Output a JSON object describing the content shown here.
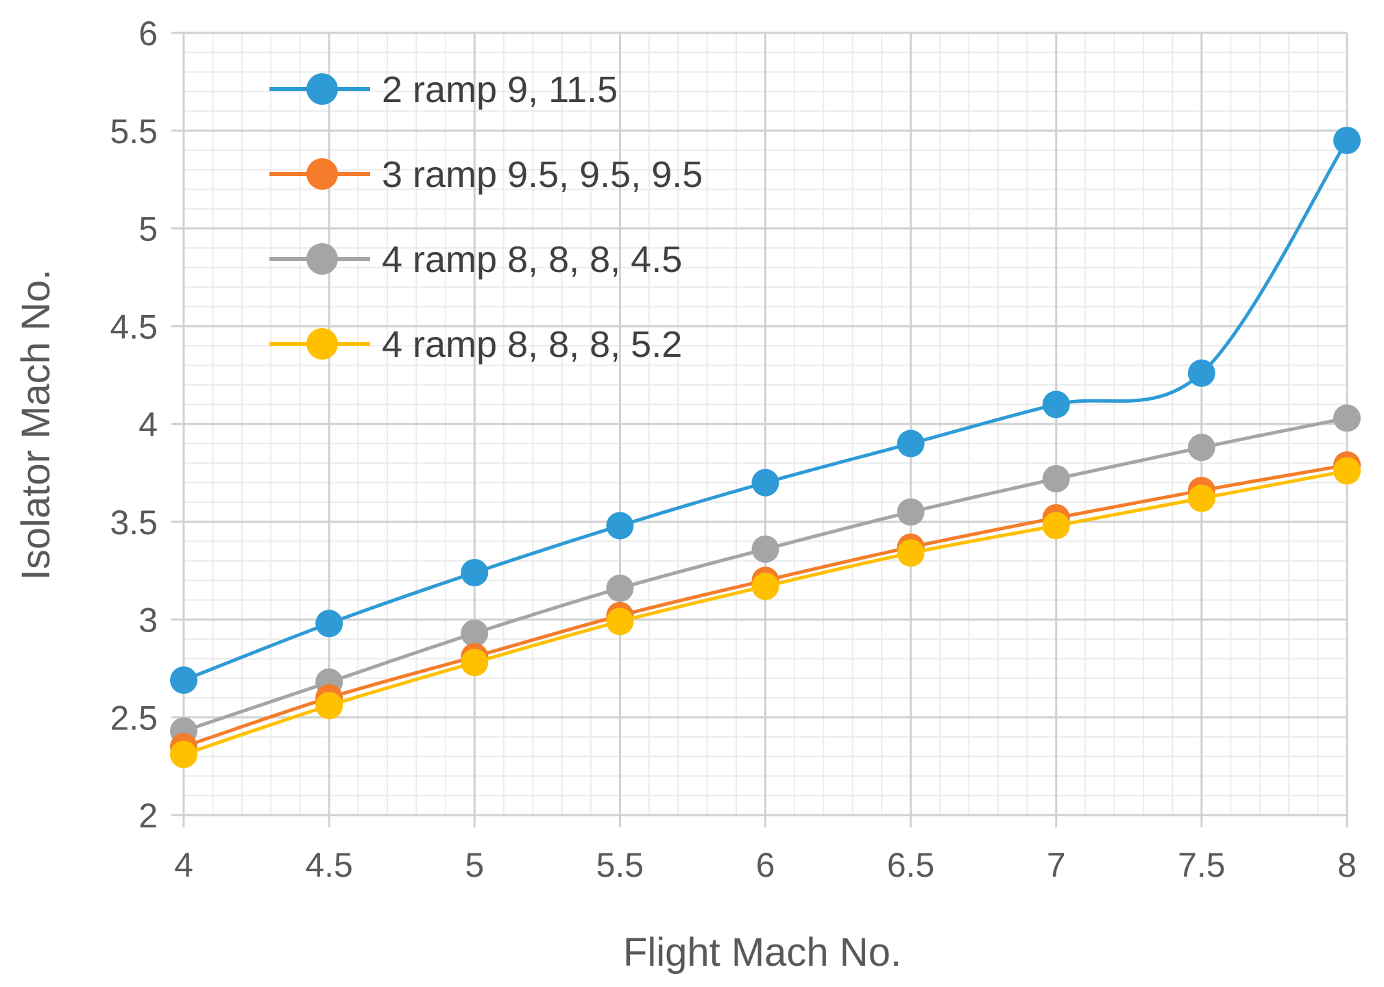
{
  "chart_data": {
    "type": "line",
    "title": "",
    "xlabel": "Flight Mach No.",
    "ylabel": "Isolator Mach No.",
    "xlim": [
      4,
      8
    ],
    "ylim": [
      2,
      6
    ],
    "x_ticks": [
      "4",
      "4.5",
      "5",
      "5.5",
      "6",
      "6.5",
      "7",
      "7.5",
      "8"
    ],
    "y_ticks": [
      "2",
      "2.5",
      "3",
      "3.5",
      "4",
      "4.5",
      "5",
      "5.5",
      "6"
    ],
    "grid": true,
    "legend_position": "top-left",
    "x": [
      4,
      4.5,
      5,
      5.5,
      6,
      6.5,
      7,
      7.5,
      8
    ],
    "series": [
      {
        "name": "2 ramp 9, 11.5",
        "color": "#2E9BD6",
        "values": [
          2.69,
          2.98,
          3.24,
          3.48,
          3.7,
          3.9,
          4.1,
          4.26,
          5.45
        ]
      },
      {
        "name": "3 ramp 9.5, 9.5, 9.5",
        "color": "#F47C2A",
        "values": [
          2.35,
          2.6,
          2.81,
          3.02,
          3.2,
          3.37,
          3.52,
          3.66,
          3.79
        ]
      },
      {
        "name": "4 ramp 8, 8, 8, 4.5",
        "color": "#A5A5A5",
        "values": [
          2.43,
          2.68,
          2.93,
          3.16,
          3.36,
          3.55,
          3.72,
          3.88,
          4.03
        ]
      },
      {
        "name": "4 ramp 8, 8, 8, 5.2",
        "color": "#FFC000",
        "values": [
          2.31,
          2.56,
          2.78,
          2.99,
          3.17,
          3.34,
          3.48,
          3.62,
          3.76
        ]
      }
    ]
  }
}
